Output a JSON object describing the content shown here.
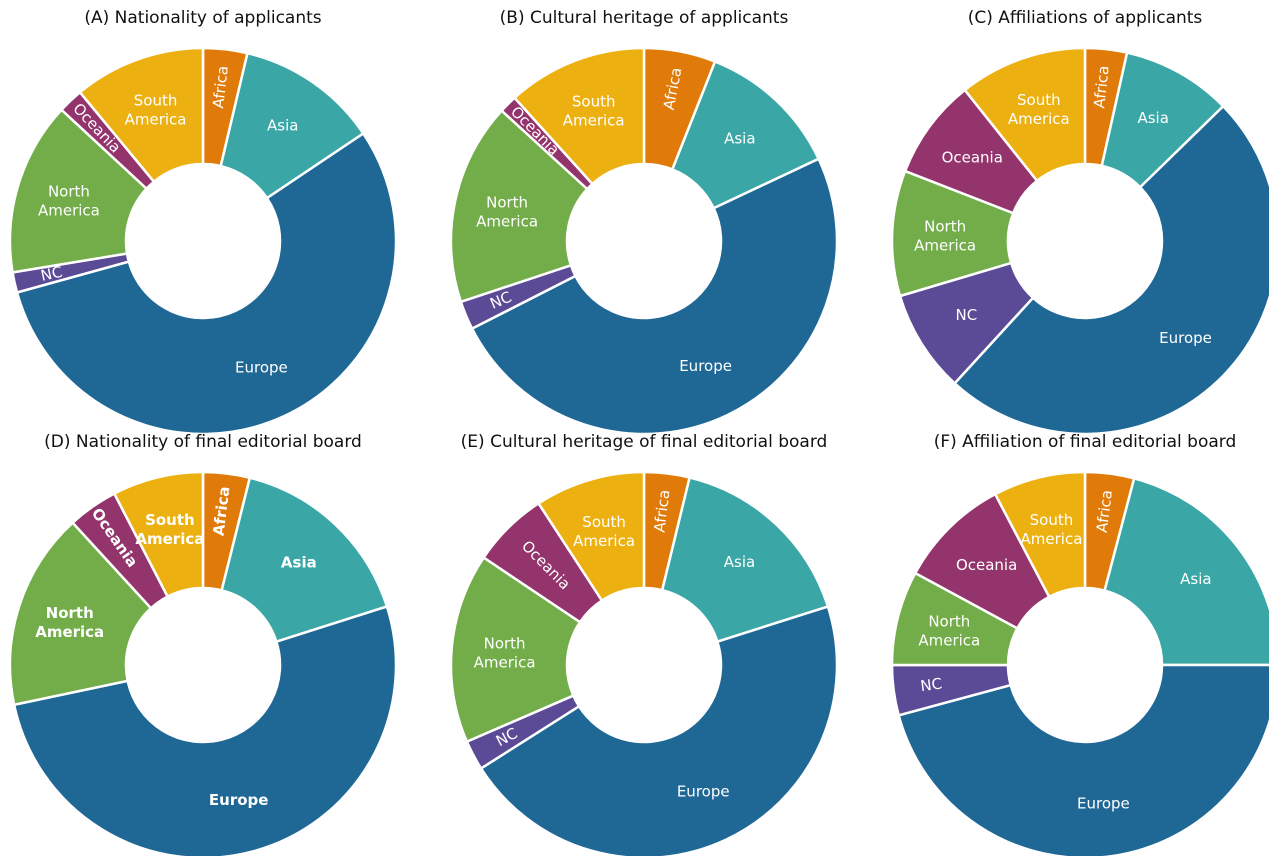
{
  "chart_data": [
    {
      "type": "pie",
      "title": "(A)  Nationality of applicants",
      "categories": [
        "Africa",
        "Asia",
        "Europe",
        "NC",
        "North America",
        "Oceania",
        "South America"
      ],
      "values": [
        3.7,
        11.9,
        55.1,
        1.7,
        14.5,
        2.1,
        11.0
      ],
      "colors": [
        "#e07b0a",
        "#3aa6a6",
        "#1f6896",
        "#5b4a96",
        "#72ad4a",
        "#93346c",
        "#ecb011"
      ]
    },
    {
      "type": "pie",
      "title": "(B) Cultural heritage of applicants",
      "categories": [
        "Africa",
        "Asia",
        "Europe",
        "NC",
        "North America",
        "Oceania",
        "South America"
      ],
      "values": [
        6.0,
        12.0,
        49.5,
        2.4,
        16.9,
        1.5,
        11.7
      ],
      "colors": [
        "#e07b0a",
        "#3aa6a6",
        "#1f6896",
        "#5b4a96",
        "#72ad4a",
        "#93346c",
        "#ecb011"
      ]
    },
    {
      "type": "pie",
      "title": "(C) Affiliations of applicants",
      "categories": [
        "Africa",
        "Asia",
        "Europe",
        "NC",
        "North America",
        "Oceania",
        "South America"
      ],
      "values": [
        3.5,
        9.2,
        49.1,
        8.6,
        10.5,
        8.4,
        10.7
      ],
      "colors": [
        "#e07b0a",
        "#3aa6a6",
        "#1f6896",
        "#5b4a96",
        "#72ad4a",
        "#93346c",
        "#ecb011"
      ]
    },
    {
      "type": "pie",
      "title": "(D)  Nationality of final editorial board",
      "label_weight": "bold",
      "categories": [
        "Africa",
        "Asia",
        "Europe",
        "North America",
        "Oceania",
        "South America"
      ],
      "values": [
        3.9,
        16.2,
        51.6,
        16.5,
        4.2,
        7.6
      ],
      "colors": [
        "#e07b0a",
        "#3aa6a6",
        "#1f6896",
        "#72ad4a",
        "#93346c",
        "#ecb011"
      ]
    },
    {
      "type": "pie",
      "title": "(E) Cultural heritage of final editorial board",
      "categories": [
        "Africa",
        "Asia",
        "Europe",
        "NC",
        "North America",
        "Oceania",
        "South America"
      ],
      "values": [
        3.8,
        16.3,
        45.9,
        2.5,
        15.9,
        6.4,
        9.2
      ],
      "colors": [
        "#e07b0a",
        "#3aa6a6",
        "#1f6896",
        "#5b4a96",
        "#72ad4a",
        "#93346c",
        "#ecb011"
      ]
    },
    {
      "type": "pie",
      "title": "(F) Affiliation of final editorial board",
      "categories": [
        "Africa",
        "Asia",
        "Europe",
        "NC",
        "North America",
        "Oceania",
        "South America"
      ],
      "values": [
        4.1,
        20.9,
        45.8,
        4.2,
        7.9,
        9.4,
        7.7
      ],
      "colors": [
        "#e07b0a",
        "#3aa6a6",
        "#1f6896",
        "#5b4a96",
        "#72ad4a",
        "#93346c",
        "#ecb011"
      ]
    }
  ]
}
